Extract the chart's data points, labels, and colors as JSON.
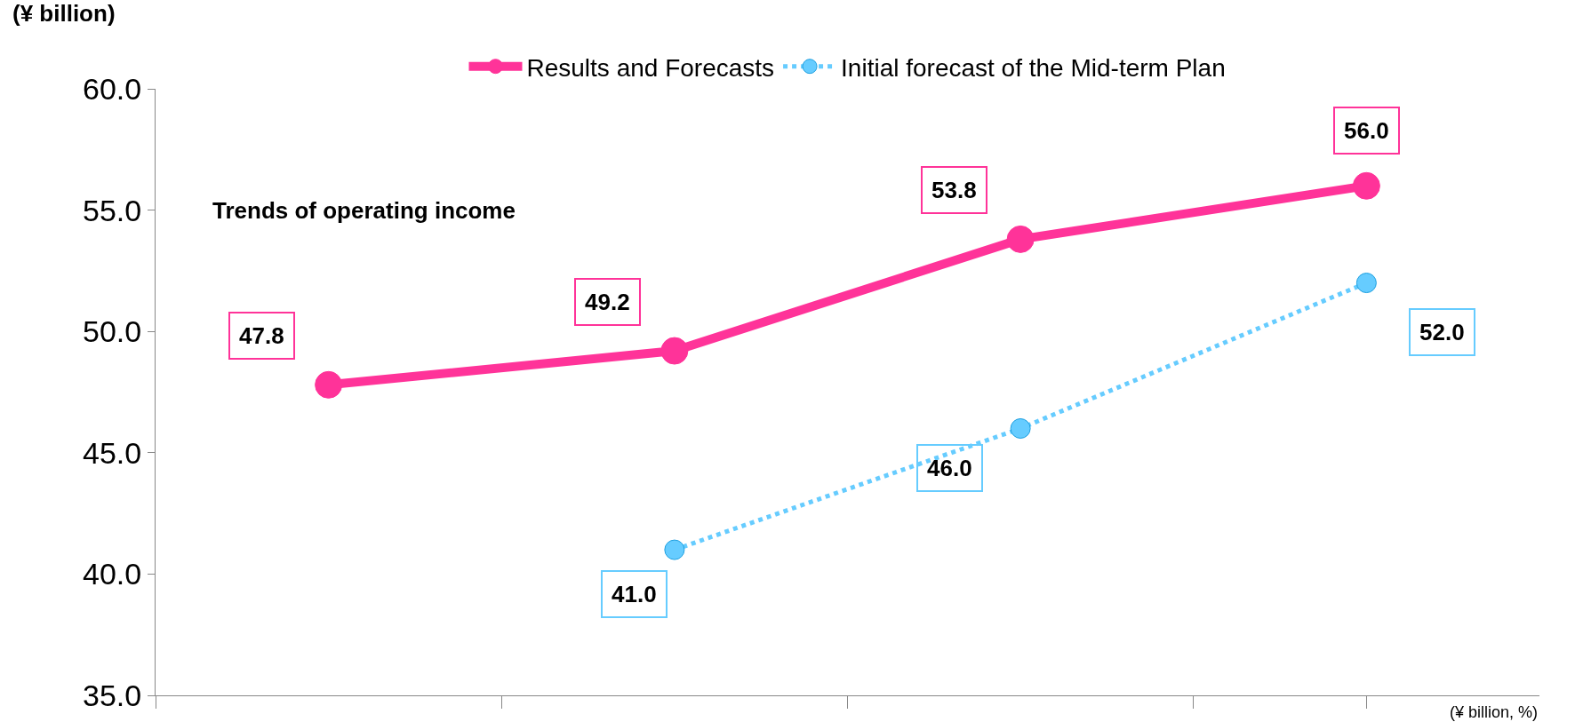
{
  "chart_data": {
    "type": "line",
    "ylabel": "(¥ billion)",
    "annotations": [
      "Trends of operating income",
      "(¥ billion, %)"
    ],
    "categories": [
      null,
      null,
      null,
      null
    ],
    "series": [
      {
        "name": "Results and Forecasts",
        "color": "#ff3399",
        "values": [
          47.8,
          49.2,
          53.8,
          56.0
        ],
        "value_labels": [
          "47.8",
          "49.2",
          "53.8",
          "56.0"
        ],
        "line_style": "solid"
      },
      {
        "name": "Initial forecast of the Mid-term Plan",
        "color": "#66ccff",
        "values": [
          null,
          41.0,
          46.0,
          52.0
        ],
        "value_labels": [
          null,
          "41.0",
          "46.0",
          "52.0"
        ],
        "line_style": "dotted"
      }
    ],
    "ylim": [
      35,
      60
    ],
    "yticks": [
      {
        "value": 35,
        "label": "35.0"
      },
      {
        "value": 40,
        "label": "40.0"
      },
      {
        "value": 45,
        "label": "45.0"
      },
      {
        "value": 50,
        "label": "50.0"
      },
      {
        "value": 55,
        "label": "55.0"
      },
      {
        "value": 60,
        "label": "60.0"
      }
    ],
    "grid": false,
    "legend": "top",
    "marker": "circle"
  }
}
